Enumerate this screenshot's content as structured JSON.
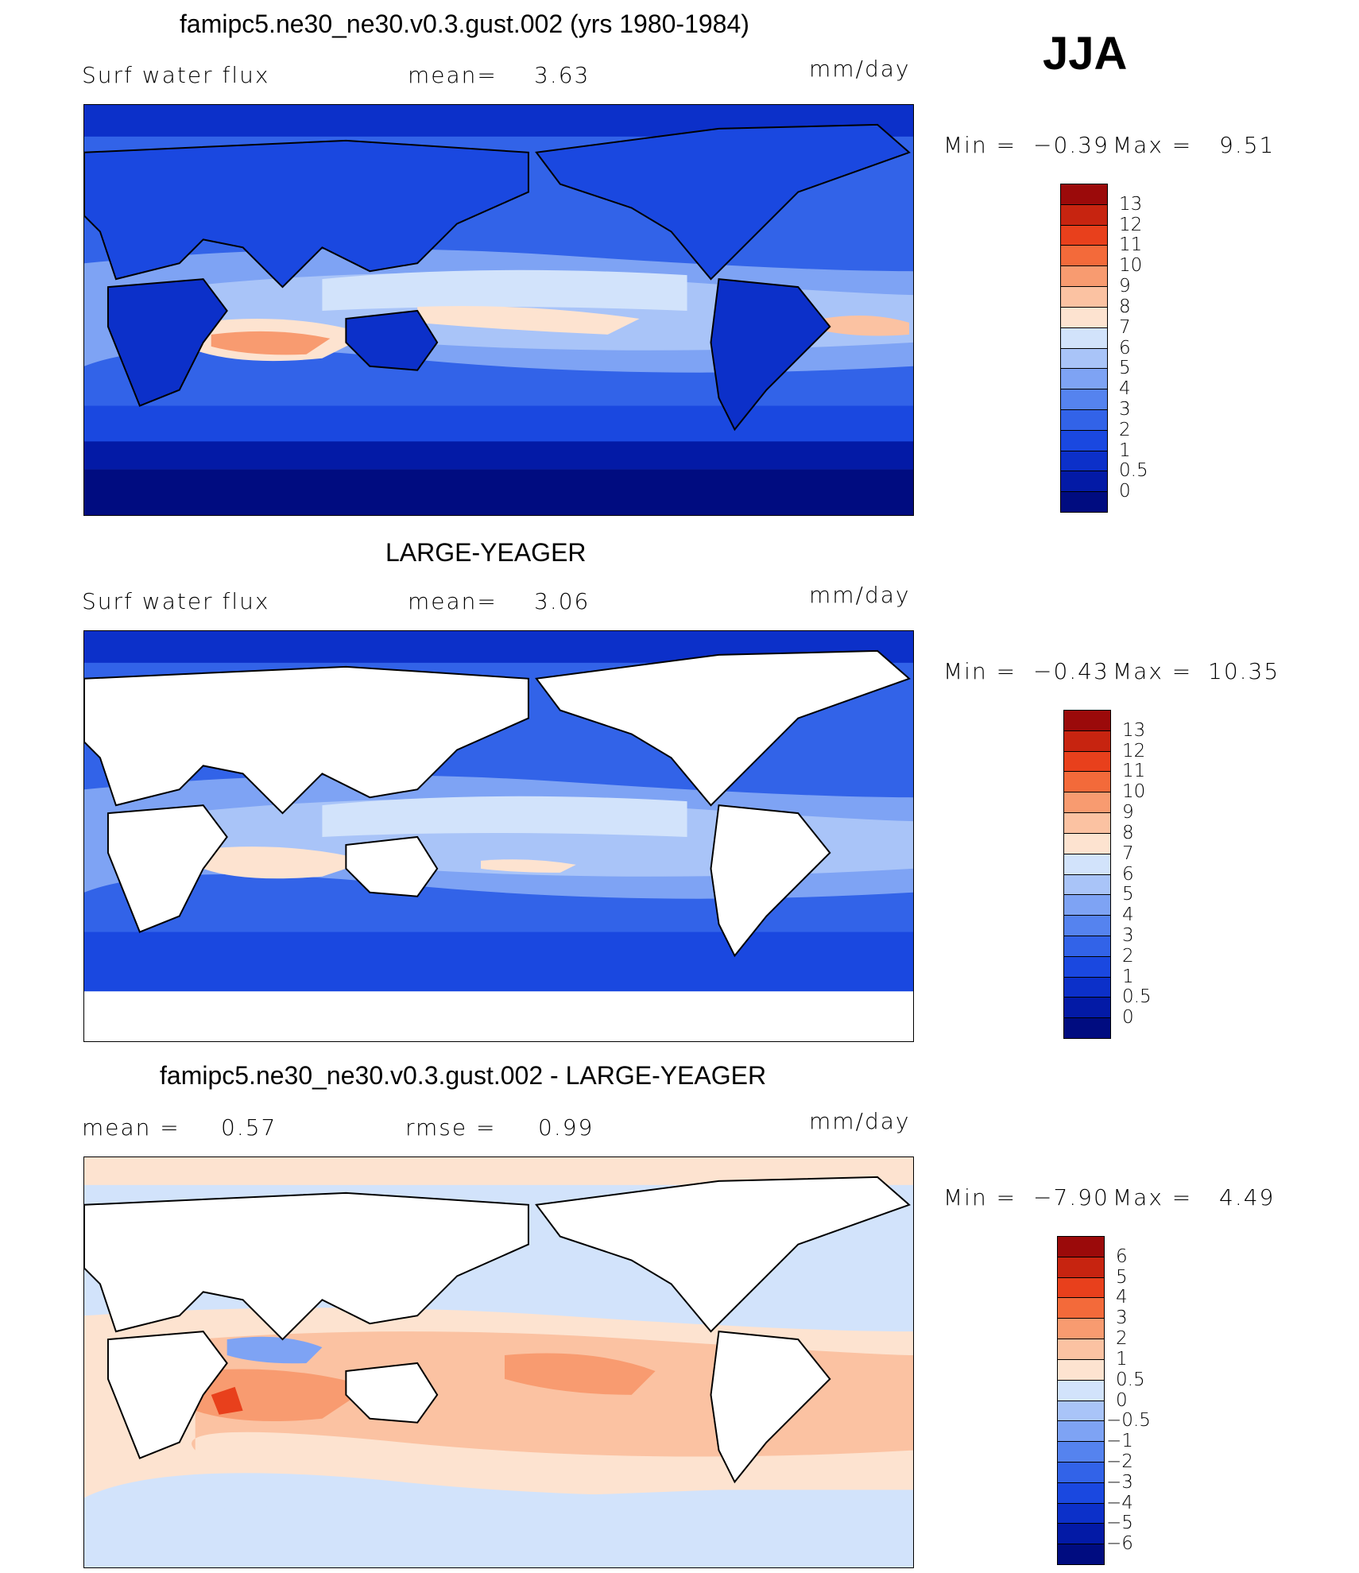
{
  "season": "JJA",
  "colors": {
    "land": "#ffffff",
    "coast": "#000000",
    "abs_scale": [
      "#000c80",
      "#031aa6",
      "#0c30c9",
      "#1a48e0",
      "#3263e8",
      "#5583ef",
      "#7ea3f4",
      "#a9c4f8",
      "#d2e3fb",
      "#fde3d0",
      "#fbc2a2",
      "#f89b70",
      "#f36a3a",
      "#e8401c",
      "#c72410",
      "#9b0a0a"
    ],
    "diff_scale": [
      "#000c80",
      "#031aa6",
      "#0c30c9",
      "#1a48e0",
      "#3263e8",
      "#5583ef",
      "#7ea3f4",
      "#a9c4f8",
      "#d2e3fb",
      "#fde3d0",
      "#fbc2a2",
      "#f89b70",
      "#f36a3a",
      "#e8401c",
      "#c72410",
      "#9b0a0a"
    ]
  },
  "panels": [
    {
      "title": "famipc5.ne30_ne30.v0.3.gust.002 (yrs 1980-1984)",
      "left_label": "Surf  water  flux",
      "mid_label": "mean=",
      "mid_value": "3.63",
      "units": "mm/day",
      "min_label": "Min  =",
      "min_value": "−0.39",
      "max_label": "Max  =",
      "max_value": "9.51",
      "colorbar_ticks": [
        "13",
        "12",
        "11",
        "10",
        "9",
        "8",
        "7",
        "6",
        "5",
        "4",
        "3",
        "2",
        "1",
        "0.5",
        "0"
      ],
      "field_level": "land-and-ocean"
    },
    {
      "title": "LARGE-YEAGER",
      "left_label": "Surf  water  flux",
      "mid_label": "mean=",
      "mid_value": "3.06",
      "units": "mm/day",
      "min_label": "Min  =",
      "min_value": "−0.43",
      "max_label": "Max  =",
      "max_value": "10.35",
      "colorbar_ticks": [
        "13",
        "12",
        "11",
        "10",
        "9",
        "8",
        "7",
        "6",
        "5",
        "4",
        "3",
        "2",
        "1",
        "0.5",
        "0"
      ],
      "field_level": "ocean-only"
    },
    {
      "title": "famipc5.ne30_ne30.v0.3.gust.002 - LARGE-YEAGER",
      "left_label": "mean  =",
      "left_value": "0.57",
      "mid_label": "rmse  =",
      "mid_value": "0.99",
      "units": "mm/day",
      "min_label": "Min  =",
      "min_value": "−7.90",
      "max_label": "Max  =",
      "max_value": "4.49",
      "colorbar_ticks": [
        "6",
        "5",
        "4",
        "3",
        "2",
        "1",
        "0.5",
        "0",
        "−0.5",
        "−1",
        "−2",
        "−3",
        "−4",
        "−5",
        "−6"
      ],
      "field_level": "difference"
    }
  ]
}
